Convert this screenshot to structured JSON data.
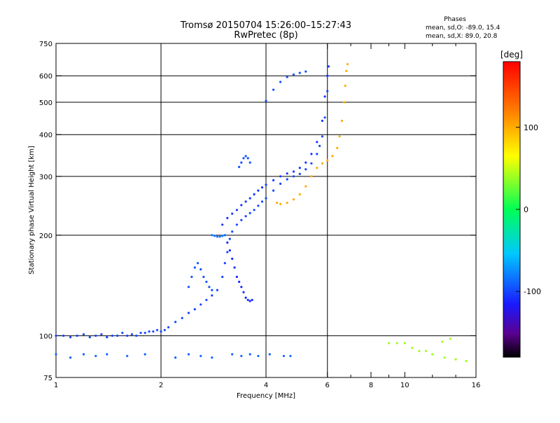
{
  "chart_data": {
    "type": "scatter",
    "title": "Tromsø 20150704 15:26:00–15:27:43",
    "subtitle": "RwPretec (8p)",
    "stats": {
      "heading": "Phases",
      "line_o": "mean, sd,O: -89.0, 15.4",
      "line_x": "mean, sd,X:  89.0, 20.8"
    },
    "xlabel": "Frequency [MHz]",
    "ylabel": "Stationary phase Virtual Height [km]",
    "x_scale": "log",
    "y_scale": "log",
    "xlim": [
      1,
      16
    ],
    "ylim": [
      75,
      750
    ],
    "x_ticks": [
      1,
      2,
      4,
      6,
      8,
      10,
      16
    ],
    "y_ticks": [
      75,
      100,
      200,
      300,
      400,
      500,
      600,
      750
    ],
    "x_gridlines": [
      2,
      4,
      6
    ],
    "y_gridlines": [
      100,
      200,
      300,
      400,
      500,
      600
    ],
    "grid": true,
    "colorbar": {
      "label": "[deg]",
      "range": [
        -180,
        180
      ],
      "ticks": [
        -100,
        0,
        100
      ]
    },
    "traces": [
      {
        "phase": -100,
        "points": [
          [
            1.0,
            100
          ],
          [
            1.05,
            100
          ],
          [
            1.1,
            99
          ],
          [
            1.15,
            100
          ],
          [
            1.2,
            101
          ],
          [
            1.25,
            99
          ],
          [
            1.3,
            100
          ],
          [
            1.35,
            101
          ],
          [
            1.4,
            99
          ],
          [
            1.45,
            100
          ],
          [
            1.5,
            100
          ],
          [
            1.55,
            102
          ],
          [
            1.6,
            100
          ],
          [
            1.65,
            101
          ],
          [
            1.7,
            100
          ],
          [
            1.75,
            102
          ],
          [
            1.8,
            102
          ],
          [
            1.85,
            103
          ],
          [
            1.9,
            103
          ],
          [
            1.95,
            104
          ],
          [
            2.0,
            103
          ],
          [
            2.05,
            104
          ],
          [
            2.1,
            106
          ],
          [
            2.2,
            110
          ],
          [
            2.3,
            113
          ],
          [
            2.4,
            117
          ],
          [
            2.5,
            120
          ],
          [
            2.6,
            124
          ],
          [
            2.7,
            128
          ],
          [
            2.8,
            132
          ],
          [
            2.9,
            137
          ],
          [
            3.0,
            150
          ],
          [
            3.05,
            165
          ],
          [
            3.1,
            178
          ],
          [
            3.15,
            195
          ],
          [
            3.2,
            205
          ],
          [
            3.3,
            215
          ],
          [
            3.4,
            222
          ],
          [
            3.5,
            228
          ],
          [
            3.6,
            233
          ],
          [
            3.7,
            238
          ],
          [
            3.8,
            245
          ],
          [
            3.9,
            252
          ],
          [
            4.0,
            258
          ],
          [
            4.2,
            272
          ],
          [
            4.4,
            285
          ],
          [
            4.6,
            294
          ],
          [
            4.8,
            300
          ],
          [
            5.0,
            305
          ],
          [
            5.2,
            315
          ],
          [
            5.4,
            328
          ],
          [
            5.6,
            350
          ],
          [
            5.7,
            370
          ],
          [
            5.8,
            395
          ],
          [
            5.9,
            450
          ],
          [
            6.0,
            540
          ],
          [
            6.0,
            600
          ],
          [
            6.05,
            640
          ]
        ]
      },
      {
        "phase": -105,
        "points": [
          [
            3.0,
            215
          ],
          [
            3.1,
            225
          ],
          [
            3.2,
            232
          ],
          [
            3.3,
            238
          ],
          [
            3.4,
            246
          ],
          [
            3.5,
            252
          ],
          [
            3.6,
            258
          ],
          [
            3.7,
            265
          ],
          [
            3.8,
            272
          ],
          [
            3.9,
            278
          ],
          [
            4.0,
            283
          ],
          [
            4.2,
            292
          ],
          [
            4.4,
            300
          ],
          [
            4.6,
            306
          ],
          [
            4.8,
            310
          ],
          [
            5.0,
            318
          ],
          [
            5.2,
            330
          ],
          [
            5.4,
            350
          ],
          [
            5.6,
            380
          ],
          [
            5.8,
            440
          ],
          [
            5.9,
            520
          ],
          [
            6.0,
            600
          ]
        ]
      },
      {
        "phase": -110,
        "points": [
          [
            3.05,
            200
          ],
          [
            3.1,
            190
          ],
          [
            3.15,
            180
          ],
          [
            3.2,
            170
          ],
          [
            3.25,
            160
          ],
          [
            3.3,
            150
          ],
          [
            3.35,
            145
          ],
          [
            3.4,
            140
          ],
          [
            3.45,
            135
          ],
          [
            3.5,
            130
          ],
          [
            3.55,
            128
          ],
          [
            3.6,
            127
          ],
          [
            3.65,
            128
          ]
        ]
      },
      {
        "phase": -95,
        "points": [
          [
            2.4,
            140
          ],
          [
            2.45,
            150
          ],
          [
            2.5,
            160
          ],
          [
            2.55,
            165
          ],
          [
            2.6,
            158
          ],
          [
            2.65,
            150
          ],
          [
            2.7,
            145
          ],
          [
            2.75,
            140
          ],
          [
            2.8,
            137
          ],
          [
            3.35,
            320
          ],
          [
            3.4,
            330
          ],
          [
            3.45,
            340
          ],
          [
            3.5,
            345
          ],
          [
            3.55,
            340
          ],
          [
            3.6,
            330
          ],
          [
            4.0,
            505
          ],
          [
            4.2,
            545
          ],
          [
            4.4,
            575
          ],
          [
            4.6,
            595
          ],
          [
            4.8,
            605
          ],
          [
            5.0,
            612
          ],
          [
            5.2,
            618
          ]
        ]
      },
      {
        "phase": -85,
        "points": [
          [
            2.8,
            200
          ],
          [
            2.85,
            199
          ],
          [
            2.9,
            198
          ],
          [
            2.95,
            198
          ],
          [
            3.0,
            199
          ],
          [
            3.05,
            200
          ]
        ]
      },
      {
        "phase": 100,
        "points": [
          [
            4.3,
            250
          ],
          [
            4.4,
            248
          ],
          [
            4.6,
            250
          ],
          [
            4.8,
            256
          ],
          [
            5.0,
            265
          ],
          [
            5.2,
            280
          ],
          [
            5.4,
            300
          ],
          [
            5.6,
            318
          ],
          [
            5.8,
            328
          ],
          [
            6.0,
            335
          ],
          [
            6.2,
            345
          ],
          [
            6.4,
            365
          ],
          [
            6.5,
            395
          ],
          [
            6.6,
            440
          ],
          [
            6.7,
            500
          ],
          [
            6.75,
            560
          ],
          [
            6.8,
            620
          ],
          [
            6.85,
            650
          ]
        ]
      },
      {
        "phase": -90,
        "points": [
          [
            1.0,
            88
          ],
          [
            1.1,
            86
          ],
          [
            1.2,
            88
          ],
          [
            1.3,
            87
          ],
          [
            1.4,
            88
          ],
          [
            1.6,
            87
          ],
          [
            1.8,
            88
          ],
          [
            2.2,
            86
          ],
          [
            2.4,
            88
          ],
          [
            2.6,
            87
          ],
          [
            2.8,
            86
          ],
          [
            3.2,
            88
          ],
          [
            3.4,
            87
          ],
          [
            3.6,
            88
          ],
          [
            3.8,
            87
          ],
          [
            4.1,
            88
          ],
          [
            4.5,
            87
          ],
          [
            4.7,
            87
          ]
        ]
      },
      {
        "phase": 40,
        "points": [
          [
            9.0,
            95
          ],
          [
            9.5,
            95
          ],
          [
            10.0,
            95
          ],
          [
            10.5,
            92
          ],
          [
            11.0,
            90
          ],
          [
            11.5,
            90
          ],
          [
            12.0,
            88
          ],
          [
            13.0,
            86
          ],
          [
            14.0,
            85
          ],
          [
            15.0,
            84
          ],
          [
            12.8,
            96
          ],
          [
            13.5,
            98
          ]
        ]
      }
    ]
  }
}
